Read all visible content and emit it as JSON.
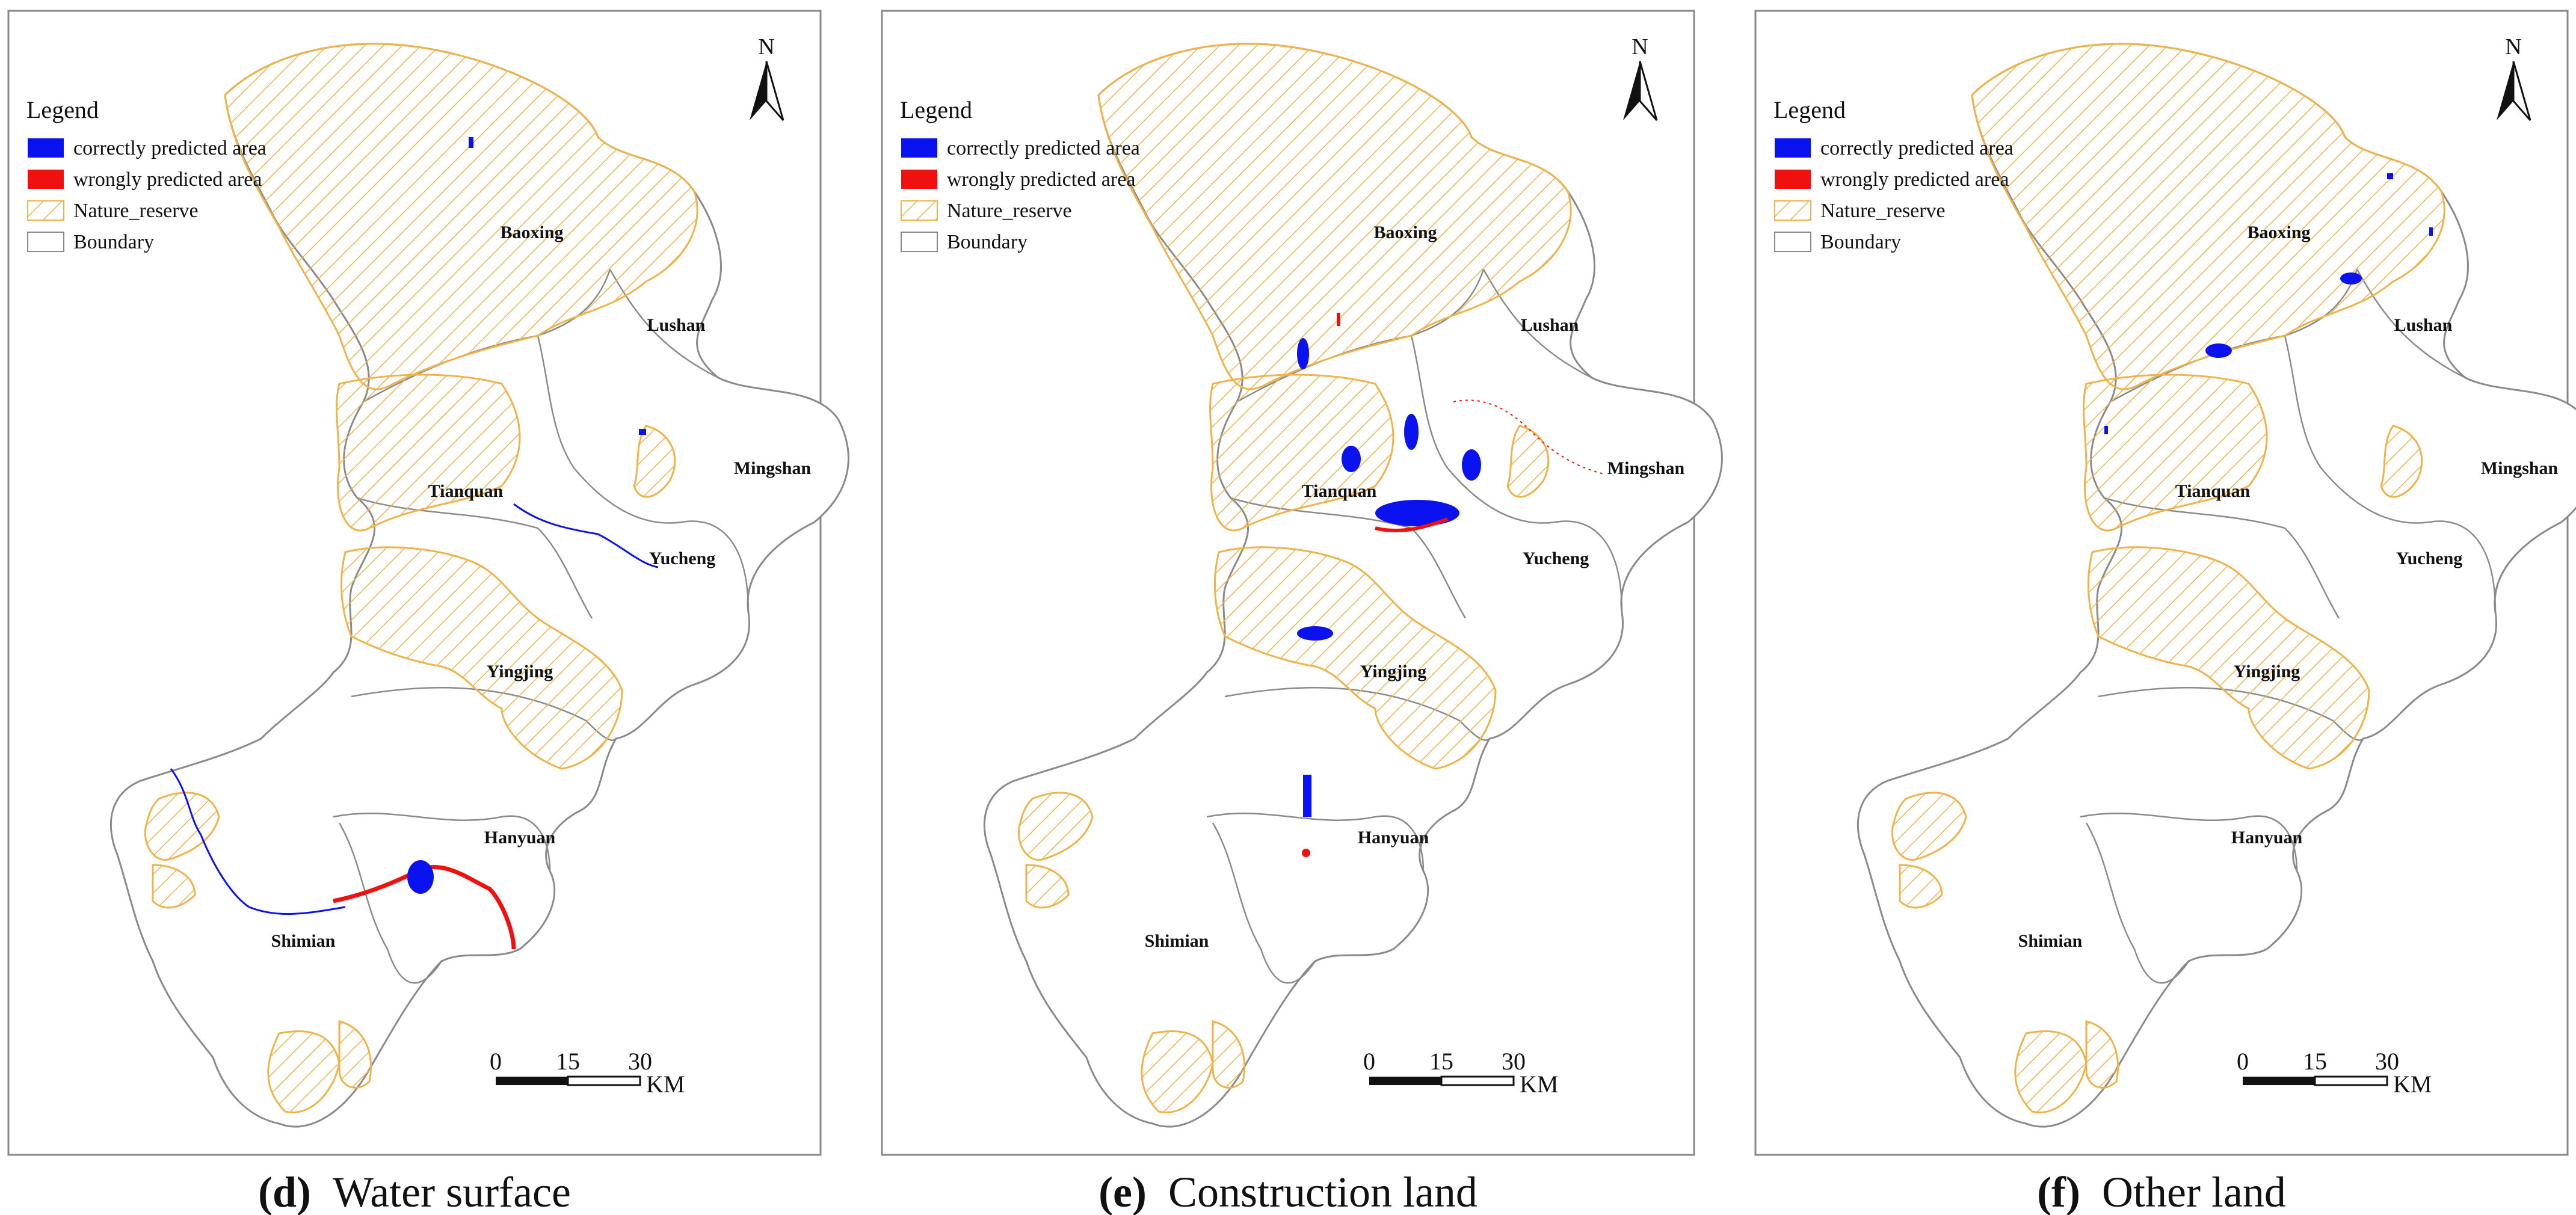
{
  "panels": [
    {
      "letter": "(d)",
      "caption": "Water surface",
      "legend": {
        "title": "Legend",
        "items": [
          "correctly predicted area",
          "wrongly predicted area",
          "Nature_reserve",
          "Boundary"
        ]
      },
      "north": "N",
      "scale": {
        "ticks": [
          "0",
          "15",
          "30"
        ],
        "unit": "KM"
      },
      "regions": [
        "Baoxing",
        "Lushan",
        "Mingshan",
        "Tianquan",
        "Yucheng",
        "Yingjing",
        "Hanyuan",
        "Shimian"
      ]
    },
    {
      "letter": "(e)",
      "caption": "Construction land",
      "legend": {
        "title": "Legend",
        "items": [
          "correctly predicted area",
          "wrongly predicted area",
          "Nature_reserve",
          "Boundary"
        ]
      },
      "north": "N",
      "scale": {
        "ticks": [
          "0",
          "15",
          "30"
        ],
        "unit": "KM"
      },
      "regions": [
        "Baoxing",
        "Lushan",
        "Mingshan",
        "Tianquan",
        "Yucheng",
        "Yingjing",
        "Hanyuan",
        "Shimian"
      ]
    },
    {
      "letter": "(f)",
      "caption": "Other land",
      "legend": {
        "title": "Legend",
        "items": [
          "correctly predicted area",
          "wrongly predicted area",
          "Nature_reserve",
          "Boundary"
        ]
      },
      "north": "N",
      "scale": {
        "ticks": [
          "0",
          "15",
          "30"
        ],
        "unit": "KM"
      },
      "regions": [
        "Baoxing",
        "Lushan",
        "Mingshan",
        "Tianquan",
        "Yucheng",
        "Yingjing",
        "Hanyuan",
        "Shimian"
      ]
    }
  ],
  "colors": {
    "correct": "#0a12f0",
    "wrong": "#f01010",
    "reserve": "#f0b34a",
    "boundary": "#8a8a8a"
  }
}
